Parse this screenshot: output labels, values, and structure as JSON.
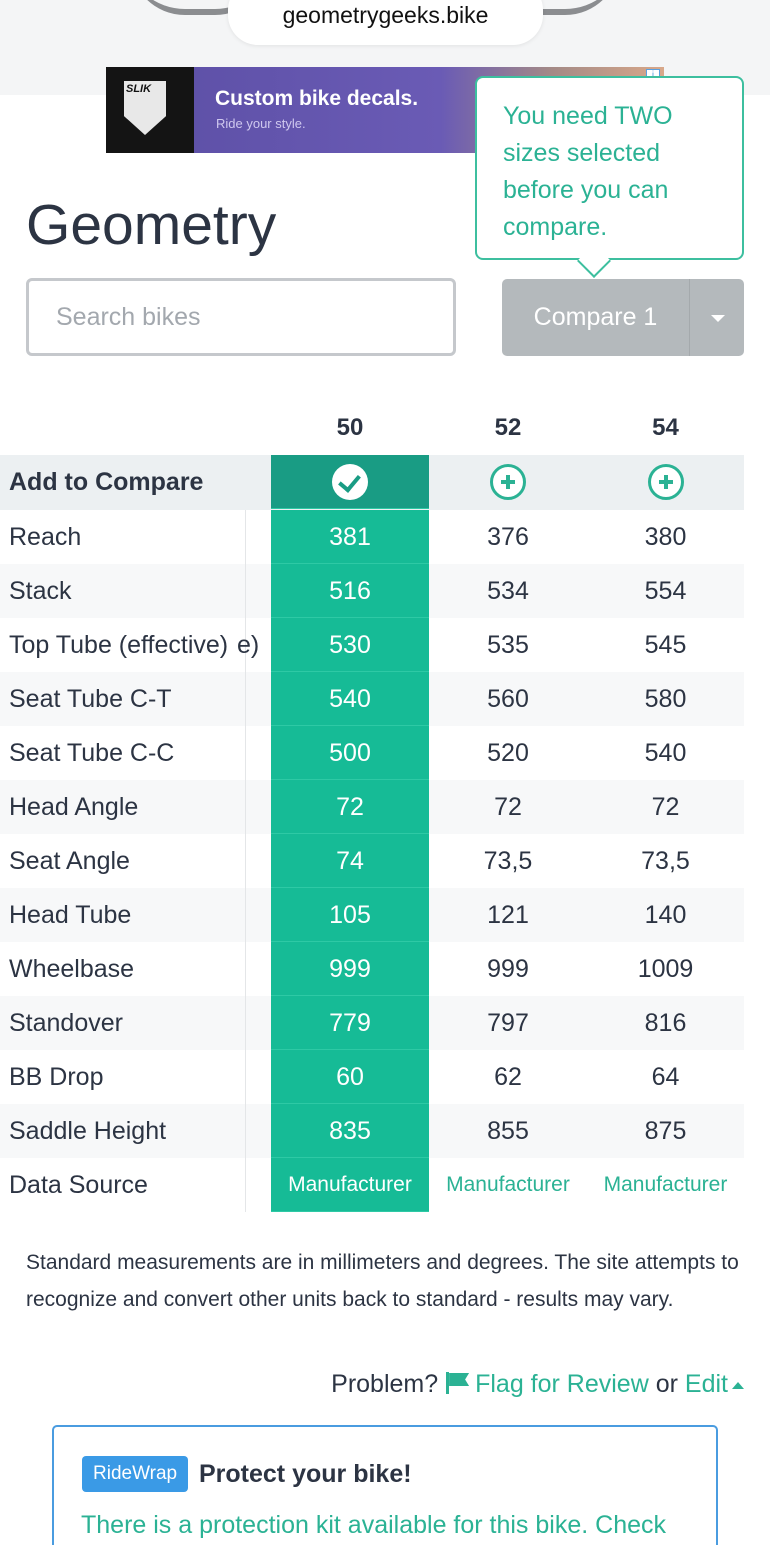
{
  "browser": {
    "url": "geometrygeeks.bike"
  },
  "ad": {
    "logo_text": "SLIK",
    "title": "Custom bike decals.",
    "subtitle": "Ride your style."
  },
  "tooltip": {
    "text": "You need TWO sizes selected before you can compare."
  },
  "page": {
    "title": "Geometry"
  },
  "search": {
    "placeholder": "Search bikes",
    "value": ""
  },
  "compare": {
    "label": "Compare 1"
  },
  "table": {
    "sizes": [
      "50",
      "52",
      "54"
    ],
    "selected_size_index": 0,
    "add_to_compare_label": "Add to Compare",
    "ghost_text": "e)",
    "rows": [
      {
        "label": "Reach",
        "values": [
          "381",
          "376",
          "380"
        ]
      },
      {
        "label": "Stack",
        "values": [
          "516",
          "534",
          "554"
        ]
      },
      {
        "label": "Top Tube (effective)",
        "values": [
          "530",
          "535",
          "545"
        ]
      },
      {
        "label": "Seat Tube C-T",
        "values": [
          "540",
          "560",
          "580"
        ]
      },
      {
        "label": "Seat Tube C-C",
        "values": [
          "500",
          "520",
          "540"
        ]
      },
      {
        "label": "Head Angle",
        "values": [
          "72",
          "72",
          "72"
        ]
      },
      {
        "label": "Seat Angle",
        "values": [
          "74",
          "73,5",
          "73,5"
        ]
      },
      {
        "label": "Head Tube",
        "values": [
          "105",
          "121",
          "140"
        ]
      },
      {
        "label": "Wheelbase",
        "values": [
          "999",
          "999",
          "1009"
        ]
      },
      {
        "label": "Standover",
        "values": [
          "779",
          "797",
          "816"
        ]
      },
      {
        "label": "BB Drop",
        "values": [
          "60",
          "62",
          "64"
        ]
      },
      {
        "label": "Saddle Height",
        "values": [
          "835",
          "855",
          "875"
        ]
      },
      {
        "label": "Data Source",
        "values": [
          "Manufacturer",
          "Manufacturer",
          "Manufacturer"
        ]
      }
    ]
  },
  "note": {
    "text": "Standard measurements are in millimeters and degrees. The site attempts to recognize and convert other units back to standard - results may vary."
  },
  "problem": {
    "label": "Problem?",
    "flag_label": "Flag for Review",
    "or_label": "or",
    "edit_label": "Edit"
  },
  "ridewrap": {
    "badge": "RideWrap",
    "title": "Protect your bike!",
    "text": "There is a protection kit available for this bike. Check"
  },
  "colors": {
    "accent": "#16bb96",
    "accent_dark": "#199c84",
    "link": "#2bb294",
    "compare_disabled": "#b4b9bc",
    "ridewrap_blue": "#3a9ae6"
  }
}
